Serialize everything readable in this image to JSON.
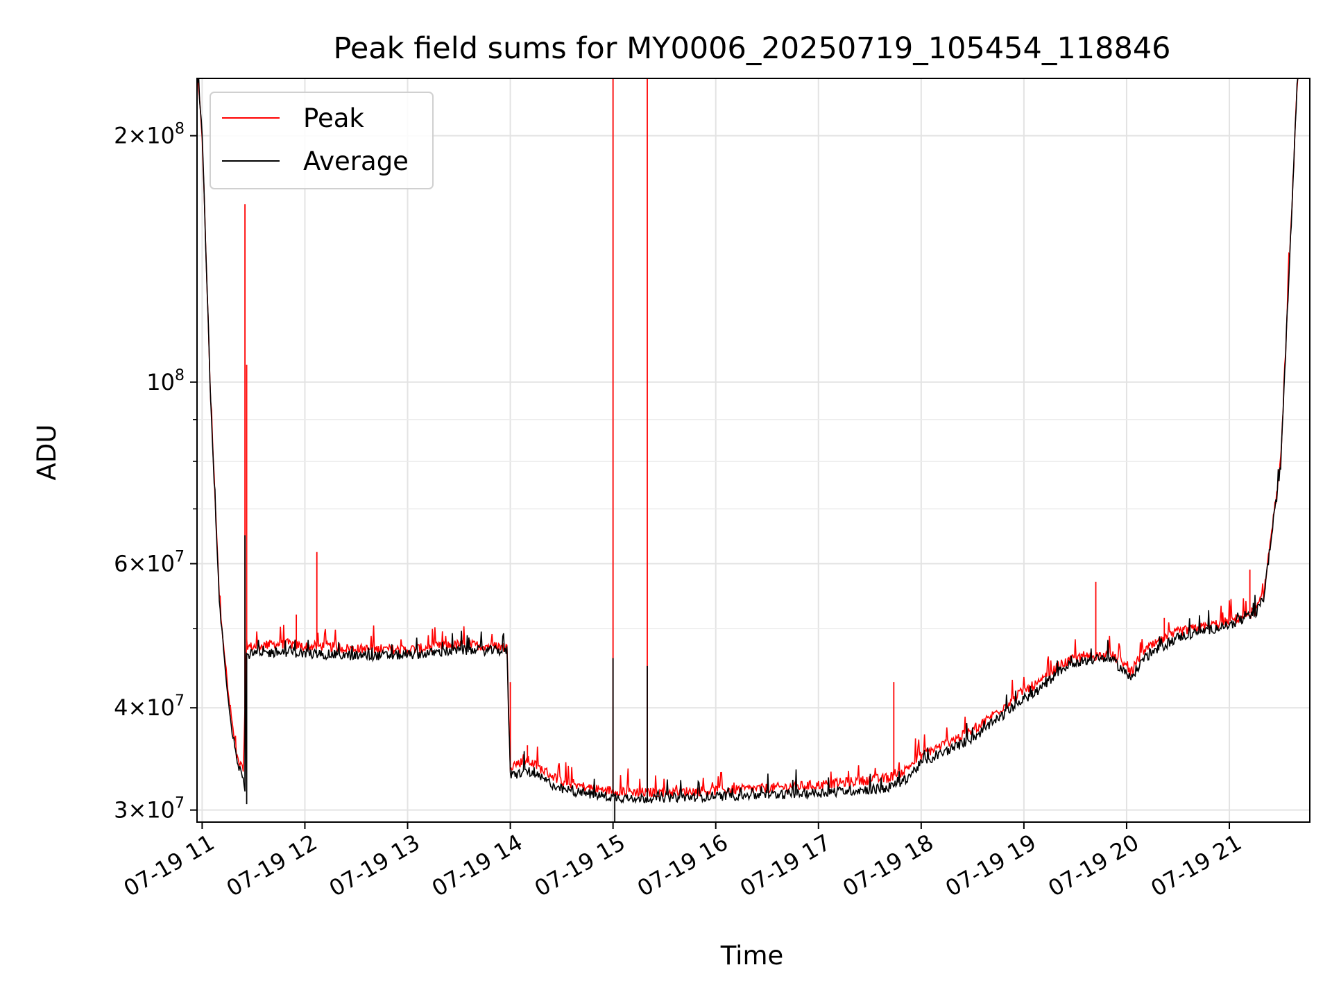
{
  "chart_data": {
    "type": "line",
    "title": "Peak field sums for MY0006_20250719_105454_118846",
    "xlabel": "Time",
    "ylabel": "ADU",
    "yscale": "log",
    "ylim": [
      29000000,
      235000000
    ],
    "xlim": [
      "2025-07-19 10:57",
      "2025-07-19 21:47"
    ],
    "x_tick_labels": [
      "07-19 11",
      "07-19 12",
      "07-19 13",
      "07-19 14",
      "07-19 15",
      "07-19 16",
      "07-19 17",
      "07-19 18",
      "07-19 19",
      "07-19 20",
      "07-19 21"
    ],
    "x_ticks": [
      "2025-07-19 11:00",
      "2025-07-19 12:00",
      "2025-07-19 13:00",
      "2025-07-19 14:00",
      "2025-07-19 15:00",
      "2025-07-19 16:00",
      "2025-07-19 17:00",
      "2025-07-19 18:00",
      "2025-07-19 19:00",
      "2025-07-19 20:00",
      "2025-07-19 21:00"
    ],
    "y_major_ticks": [
      {
        "value": 30000000,
        "mantissa": "3",
        "exp": "7"
      },
      {
        "value": 40000000,
        "mantissa": "4",
        "exp": "7"
      },
      {
        "value": 60000000,
        "mantissa": "6",
        "exp": "7"
      },
      {
        "value": 100000000,
        "mantissa": "",
        "exp": "8"
      },
      {
        "value": 200000000,
        "mantissa": "2",
        "exp": "8"
      }
    ],
    "y_minor_ticks": [
      50000000,
      70000000,
      80000000,
      90000000
    ],
    "grid": true,
    "legend_position": "upper-left",
    "series": [
      {
        "name": "Peak",
        "color": "#ff0000",
        "x": [
          "2025-07-19 10:57",
          "2025-07-19 11:00",
          "2025-07-19 11:05",
          "2025-07-19 11:10",
          "2025-07-19 11:15",
          "2025-07-19 11:20",
          "2025-07-19 11:24",
          "2025-07-19 11:25",
          "2025-07-19 11:26",
          "2025-07-19 11:27",
          "2025-07-19 11:30",
          "2025-07-19 11:40",
          "2025-07-19 11:50",
          "2025-07-19 12:00",
          "2025-07-19 12:10",
          "2025-07-19 12:30",
          "2025-07-19 13:00",
          "2025-07-19 13:30",
          "2025-07-19 13:58",
          "2025-07-19 14:00",
          "2025-07-19 14:10",
          "2025-07-19 14:30",
          "2025-07-19 14:50",
          "2025-07-19 15:00",
          "2025-07-19 15:20",
          "2025-07-19 15:40",
          "2025-07-19 16:00",
          "2025-07-19 16:30",
          "2025-07-19 17:00",
          "2025-07-19 17:40",
          "2025-07-19 17:50",
          "2025-07-19 18:00",
          "2025-07-19 18:30",
          "2025-07-19 19:00",
          "2025-07-19 19:10",
          "2025-07-19 19:20",
          "2025-07-19 19:30",
          "2025-07-19 19:50",
          "2025-07-19 19:58",
          "2025-07-19 20:02",
          "2025-07-19 20:10",
          "2025-07-19 20:30",
          "2025-07-19 21:00",
          "2025-07-19 21:15",
          "2025-07-19 21:20",
          "2025-07-19 21:30",
          "2025-07-19 21:40"
        ],
        "values": [
          240000000,
          200000000,
          95000000,
          55000000,
          42000000,
          35000000,
          33500000,
          40000000,
          48000000,
          47500000,
          47500000,
          47800000,
          47900000,
          47500000,
          47600000,
          47200000,
          47100000,
          47800000,
          47500000,
          34000000,
          34500000,
          32500000,
          31800000,
          31700000,
          31500000,
          31600000,
          31700000,
          31900000,
          32200000,
          32800000,
          33500000,
          35000000,
          37500000,
          42000000,
          43000000,
          45000000,
          46000000,
          46500000,
          45500000,
          44000000,
          47000000,
          49500000,
          51000000,
          52500000,
          55000000,
          80000000,
          240000000
        ],
        "spikes": [
          {
            "x": "2025-07-19 11:25",
            "y": 165000000
          },
          {
            "x": "2025-07-19 11:26",
            "y": 105000000
          },
          {
            "x": "2025-07-19 11:55",
            "y": 52000000
          },
          {
            "x": "2025-07-19 12:07",
            "y": 62000000
          },
          {
            "x": "2025-07-19 14:00",
            "y": 43000000
          },
          {
            "x": "2025-07-19 14:10",
            "y": 36000000
          },
          {
            "x": "2025-07-19 15:00",
            "y": 240000000
          },
          {
            "x": "2025-07-19 15:20",
            "y": 240000000
          },
          {
            "x": "2025-07-19 17:44",
            "y": 43000000
          },
          {
            "x": "2025-07-19 19:42",
            "y": 57000000
          },
          {
            "x": "2025-07-19 20:22",
            "y": 51500000
          },
          {
            "x": "2025-07-19 21:12",
            "y": 59000000
          }
        ]
      },
      {
        "name": "Average",
        "color": "#000000",
        "x": [
          "2025-07-19 10:57",
          "2025-07-19 11:00",
          "2025-07-19 11:05",
          "2025-07-19 11:10",
          "2025-07-19 11:15",
          "2025-07-19 11:20",
          "2025-07-19 11:24",
          "2025-07-19 11:25",
          "2025-07-19 11:26",
          "2025-07-19 11:27",
          "2025-07-19 11:30",
          "2025-07-19 11:40",
          "2025-07-19 11:50",
          "2025-07-19 12:00",
          "2025-07-19 12:10",
          "2025-07-19 12:30",
          "2025-07-19 13:00",
          "2025-07-19 13:30",
          "2025-07-19 13:58",
          "2025-07-19 14:00",
          "2025-07-19 14:10",
          "2025-07-19 14:30",
          "2025-07-19 14:50",
          "2025-07-19 15:00",
          "2025-07-19 15:20",
          "2025-07-19 15:40",
          "2025-07-19 16:00",
          "2025-07-19 16:30",
          "2025-07-19 17:00",
          "2025-07-19 17:40",
          "2025-07-19 17:50",
          "2025-07-19 18:00",
          "2025-07-19 18:30",
          "2025-07-19 19:00",
          "2025-07-19 19:10",
          "2025-07-19 19:20",
          "2025-07-19 19:30",
          "2025-07-19 19:50",
          "2025-07-19 19:58",
          "2025-07-19 20:02",
          "2025-07-19 20:10",
          "2025-07-19 20:30",
          "2025-07-19 21:00",
          "2025-07-19 21:15",
          "2025-07-19 21:20",
          "2025-07-19 21:30",
          "2025-07-19 21:40"
        ],
        "values": [
          240000000,
          200000000,
          94000000,
          54000000,
          41000000,
          34500000,
          33000000,
          32000000,
          46500000,
          46500000,
          46500000,
          46700000,
          46800000,
          46600000,
          46500000,
          46300000,
          46400000,
          47000000,
          47000000,
          33000000,
          33500000,
          31800000,
          31300000,
          31100000,
          31000000,
          31100000,
          31200000,
          31300000,
          31500000,
          31900000,
          32600000,
          34200000,
          36700000,
          41000000,
          42200000,
          44300000,
          45500000,
          46000000,
          44500000,
          43300000,
          46000000,
          48800000,
          50500000,
          52000000,
          54500000,
          79000000,
          240000000
        ],
        "spikes": [
          {
            "x": "2025-07-19 11:25",
            "y": 65000000
          },
          {
            "x": "2025-07-19 11:26",
            "y": 30500000
          },
          {
            "x": "2025-07-19 15:00",
            "y": 46000000
          },
          {
            "x": "2025-07-19 15:01",
            "y": 28500000
          },
          {
            "x": "2025-07-19 15:20",
            "y": 45000000
          }
        ]
      }
    ]
  }
}
